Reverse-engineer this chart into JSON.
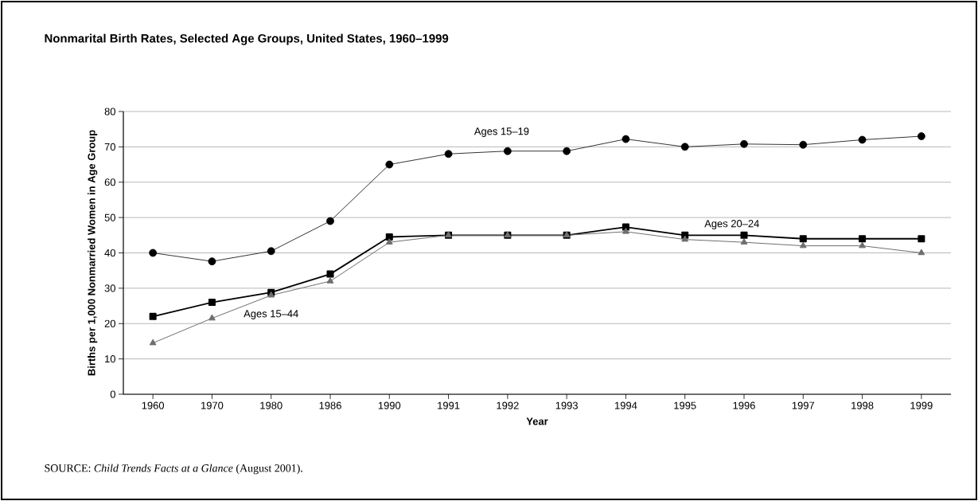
{
  "chart_data": {
    "type": "line",
    "title": "Nonmarital Birth Rates, Selected Age Groups, United States, 1960–1999",
    "xlabel": "Year",
    "ylabel": "Births per 1,000 Nonmarried Women in Age Group",
    "categories": [
      "1960",
      "1970",
      "1980",
      "1986",
      "1990",
      "1991",
      "1992",
      "1993",
      "1994",
      "1995",
      "1996",
      "1997",
      "1998",
      "1999"
    ],
    "series": [
      {
        "name": "Ages 15–19",
        "color": "#000000",
        "marker": "circle",
        "values": [
          40,
          37.6,
          40.5,
          49,
          65,
          68,
          68.8,
          68.8,
          72.2,
          70,
          70.8,
          70.6,
          72,
          73
        ]
      },
      {
        "name": "Ages 20–24",
        "color": "#000000",
        "marker": "square",
        "values": [
          22,
          26,
          28.8,
          34,
          44.5,
          45,
          45,
          45,
          47.3,
          45,
          45,
          44,
          44,
          44
        ]
      },
      {
        "name": "Ages 15–44",
        "color": "#6e6e6e",
        "marker": "triangle",
        "values": [
          14.5,
          21.5,
          28,
          32,
          43,
          45,
          45,
          45,
          46,
          43.8,
          43,
          42,
          42,
          40
        ]
      }
    ],
    "ylim": [
      0,
      80
    ],
    "yticks": [
      0,
      10,
      20,
      30,
      40,
      50,
      60,
      70,
      80
    ],
    "grid": "y",
    "annotations": [
      "SOURCE: *Child Trends Facts at a Glance* (August 2001)."
    ]
  }
}
